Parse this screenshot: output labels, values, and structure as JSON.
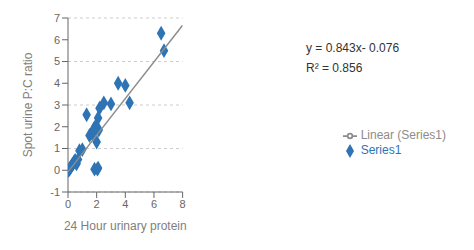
{
  "chart_data": {
    "type": "scatter",
    "xlabel": "24 Hour urinary protein",
    "ylabel": "Spot urine P:C ratio",
    "annotations": [
      "y = 0.843x- 0.076",
      "R² = 0.856"
    ],
    "series": [
      {
        "name": "Series1",
        "type": "scatter",
        "color": "#2e74b5",
        "marker": "diamond",
        "x": [
          0.05,
          0.1,
          0.15,
          0.2,
          0.25,
          0.3,
          0.35,
          0.4,
          0.45,
          0.5,
          0.55,
          0.6,
          0.7,
          0.8,
          1.0,
          1.3,
          1.5,
          1.7,
          1.8,
          1.85,
          1.9,
          1.95,
          2.0,
          2.0,
          2.05,
          2.1,
          2.1,
          2.15,
          2.2,
          2.5,
          3.0,
          3.5,
          4.0,
          4.3,
          6.5,
          6.7
        ],
        "values": [
          0.0,
          0.05,
          0.1,
          0.15,
          0.2,
          0.25,
          0.3,
          0.35,
          0.4,
          0.45,
          0.35,
          0.3,
          0.5,
          0.9,
          0.95,
          2.55,
          1.6,
          1.65,
          1.9,
          0.05,
          2.0,
          1.95,
          1.3,
          1.9,
          0.05,
          0.1,
          2.4,
          1.85,
          2.85,
          3.1,
          3.05,
          4.0,
          3.9,
          3.1,
          6.3,
          5.5
        ]
      },
      {
        "name": "Linear (Series1)",
        "type": "line",
        "color": "#8c8c8c",
        "x": [
          0,
          8
        ],
        "values": [
          -0.076,
          6.668
        ]
      }
    ],
    "xlim": [
      0,
      8
    ],
    "xticks": [
      0,
      2,
      4,
      6,
      8
    ],
    "ylim": [
      -1,
      7
    ],
    "yticks": [
      -1,
      0,
      1,
      2,
      3,
      4,
      5,
      6,
      7
    ],
    "grid": true,
    "legend": "right"
  }
}
